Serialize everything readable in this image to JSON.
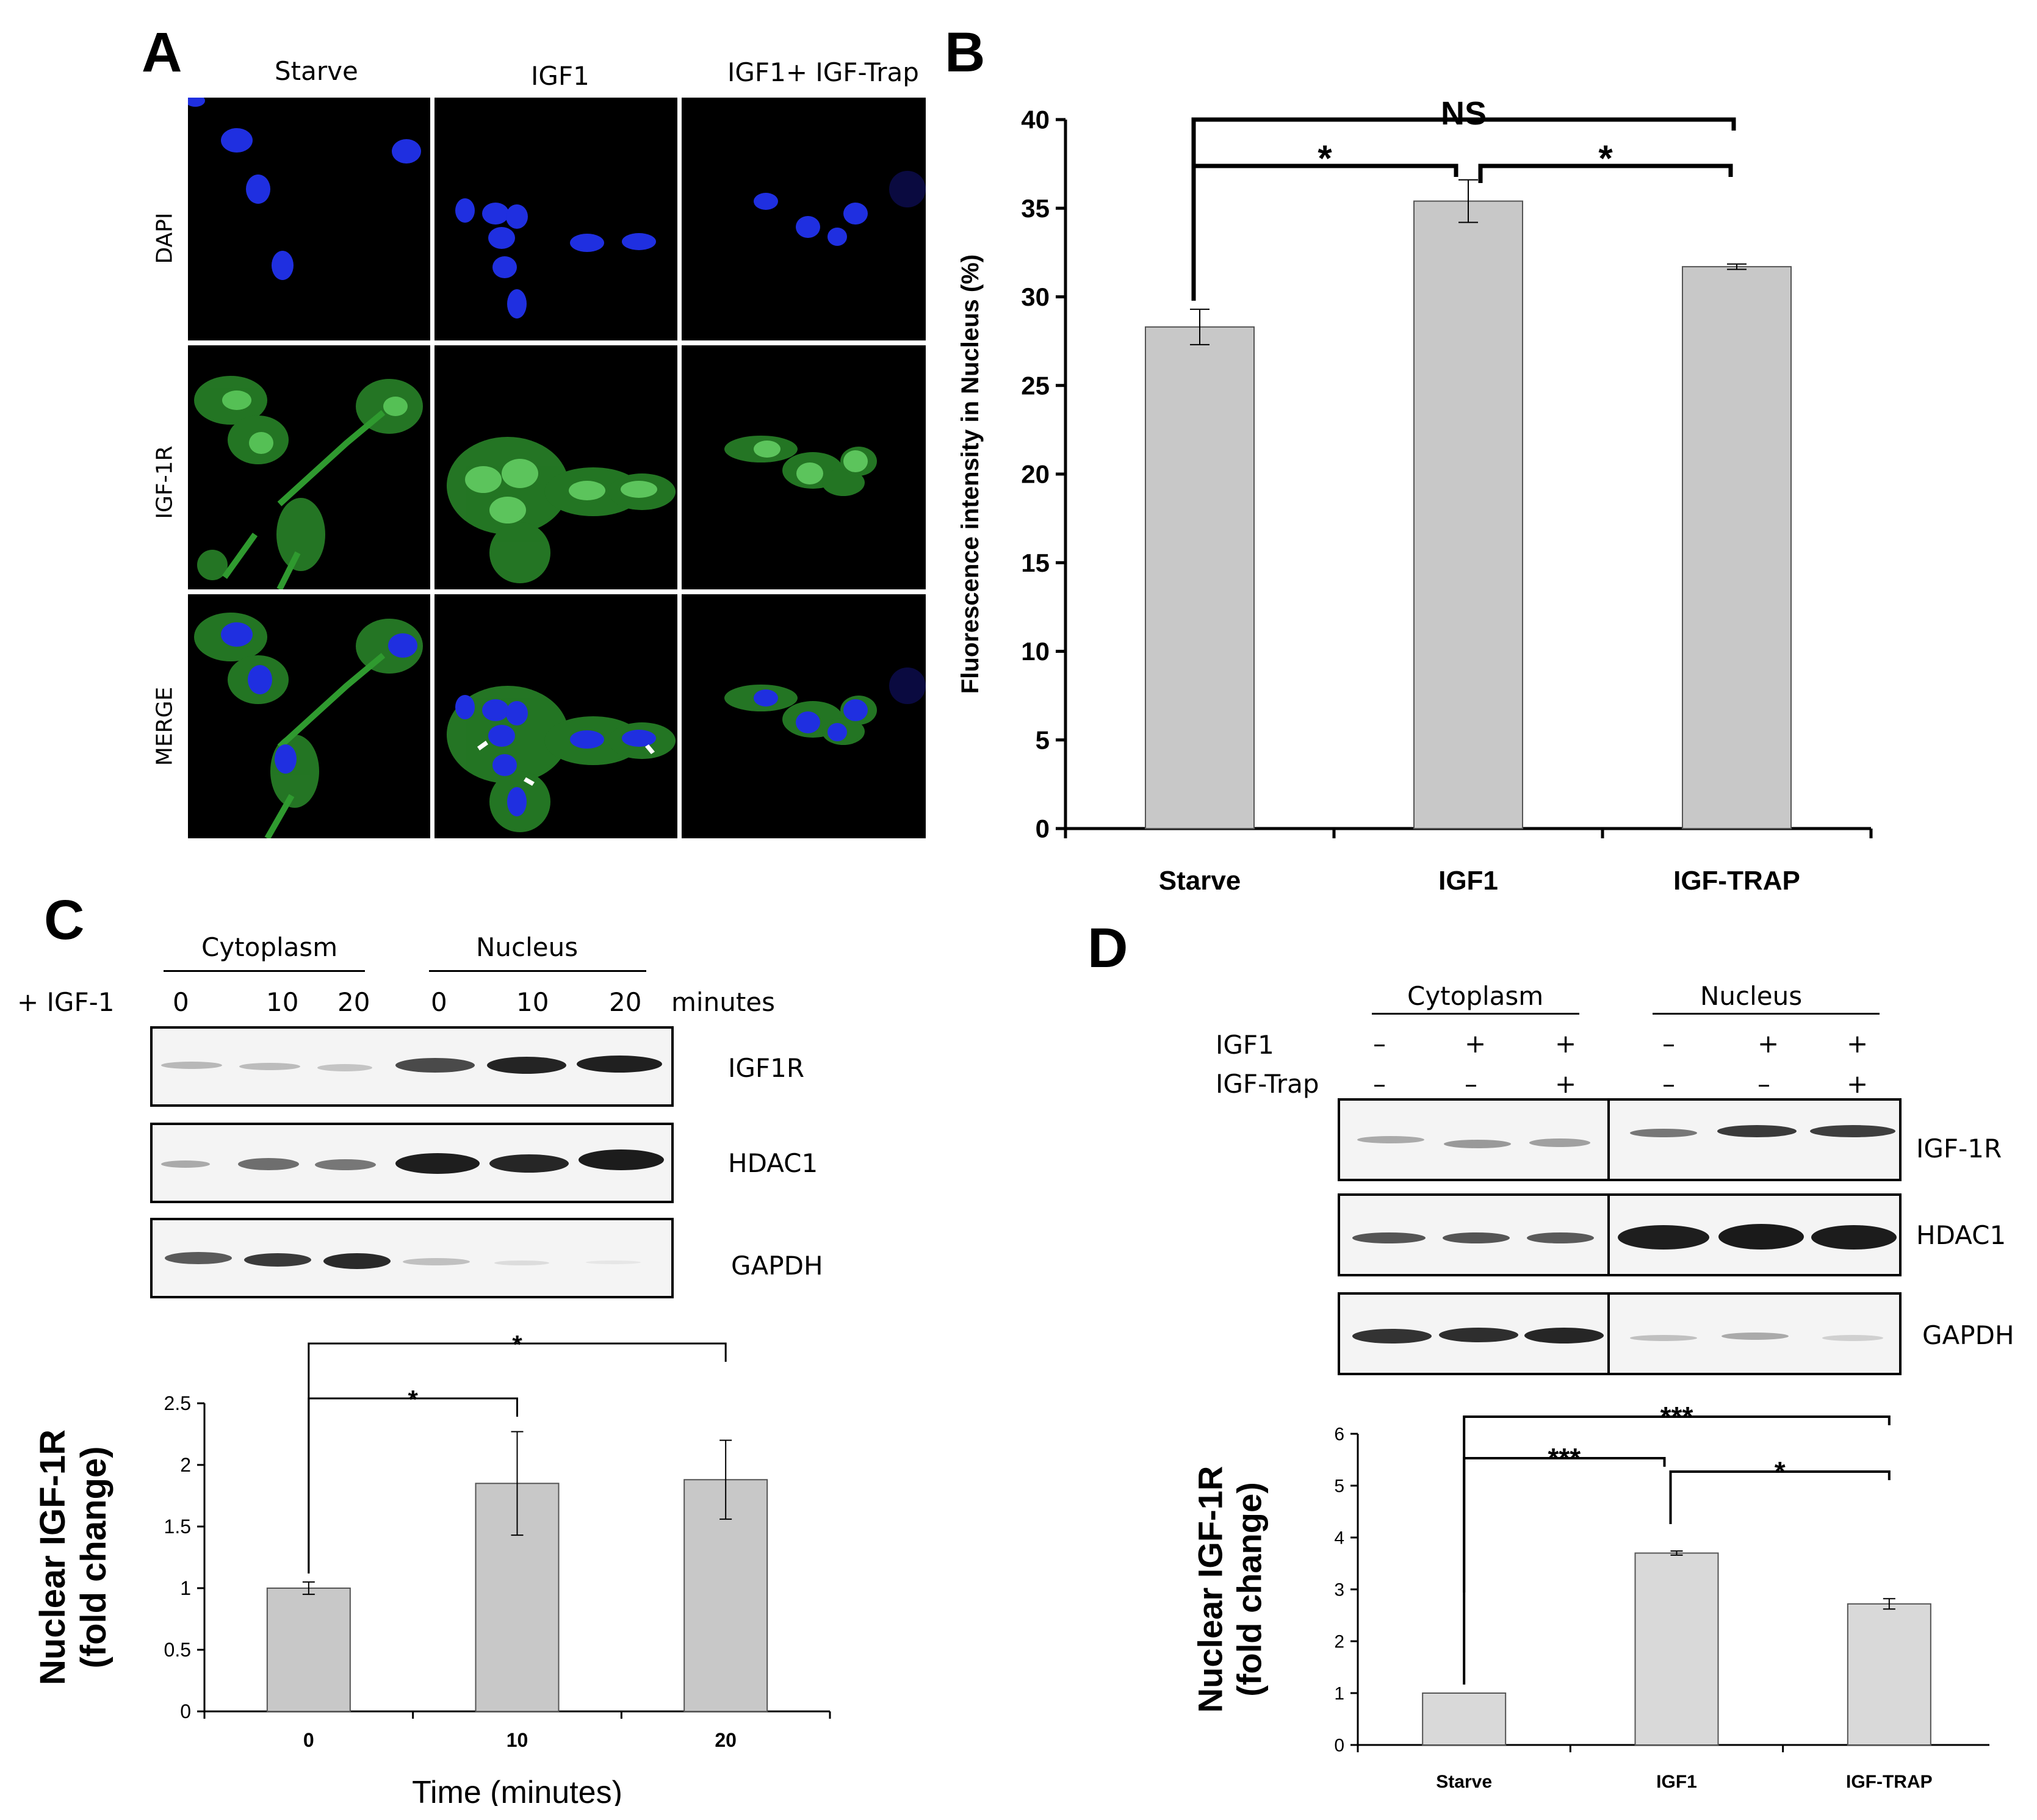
{
  "panels": {
    "A": "A",
    "B": "B",
    "C": "C",
    "D": "D"
  },
  "panelA": {
    "columns": [
      "Starve",
      "IGF1",
      "IGF1+ IGF-Trap"
    ],
    "rows": [
      "DAPI",
      "IGF-1R",
      "MERGE"
    ]
  },
  "panelC_blot": {
    "group_left": "Cytoplasm",
    "group_right": "Nucleus",
    "treatment": "+ IGF-1",
    "times": [
      "0",
      "10",
      "20",
      "0",
      "10",
      "20"
    ],
    "unit": "minutes",
    "bands": [
      "IGF1R",
      "HDAC1",
      "GAPDH"
    ]
  },
  "panelD_blot": {
    "group_left": "Cytoplasm",
    "group_right": "Nucleus",
    "row1_label": "IGF1",
    "row2_label": "IGF-Trap",
    "row1_signs": [
      "–",
      "+",
      "+",
      "–",
      "+",
      "+"
    ],
    "row2_signs": [
      "–",
      "–",
      "+",
      "–",
      "–",
      "+"
    ],
    "bands": [
      "IGF-1R",
      "HDAC1",
      "GAPDH"
    ]
  },
  "chart_data": [
    {
      "id": "B",
      "type": "bar",
      "categories": [
        "Starve",
        "IGF1",
        "IGF-TRAP"
      ],
      "values": [
        28.3,
        35.4,
        31.7
      ],
      "errors": [
        1.0,
        1.2,
        0.15
      ],
      "ylabel": "Fluorescence intensity in Nucleus (%)",
      "xlabel": "",
      "ylim": [
        0,
        40
      ],
      "yticks": [
        "0",
        "5",
        "10",
        "15",
        "20",
        "25",
        "30",
        "35",
        "40"
      ],
      "significance": [
        {
          "from": 0,
          "to": 1,
          "label": "*"
        },
        {
          "from": 1,
          "to": 2,
          "label": "*"
        },
        {
          "from": 0,
          "to": 2,
          "label": "NS"
        }
      ],
      "bar_color": "#c8c8c8"
    },
    {
      "id": "C",
      "type": "bar",
      "categories": [
        "0",
        "10",
        "20"
      ],
      "values": [
        1.0,
        1.85,
        1.88
      ],
      "errors": [
        0.05,
        0.42,
        0.32
      ],
      "ylabel": "Nuclear IGF-1R (fold change)",
      "ylabel_lines": [
        "Nuclear IGF-1R",
        "(fold change)"
      ],
      "xlabel": "Time (minutes)",
      "ylim": [
        0,
        2.5
      ],
      "yticks": [
        "0",
        "0.5",
        "1",
        "1.5",
        "2",
        "2.5"
      ],
      "significance": [
        {
          "from": 0,
          "to": 1,
          "label": "*"
        },
        {
          "from": 0,
          "to": 2,
          "label": "*"
        }
      ],
      "bar_color": "#c8c8c8"
    },
    {
      "id": "D",
      "type": "bar",
      "categories": [
        "Starve",
        "IGF1",
        "IGF-TRAP"
      ],
      "values": [
        1.0,
        3.7,
        2.72
      ],
      "errors": [
        0.0,
        0.04,
        0.1
      ],
      "ylabel": "Nuclear IGF-1R (fold change)",
      "ylabel_lines": [
        "Nuclear IGF-1R",
        "(fold change)"
      ],
      "xlabel": "",
      "ylim": [
        0,
        6
      ],
      "yticks": [
        "0",
        "1",
        "2",
        "3",
        "4",
        "5",
        "6"
      ],
      "significance": [
        {
          "from": 0,
          "to": 1,
          "label": "***"
        },
        {
          "from": 0,
          "to": 2,
          "label": "***"
        },
        {
          "from": 1,
          "to": 2,
          "label": "*"
        }
      ],
      "bar_color": "#d9d9d9"
    }
  ]
}
